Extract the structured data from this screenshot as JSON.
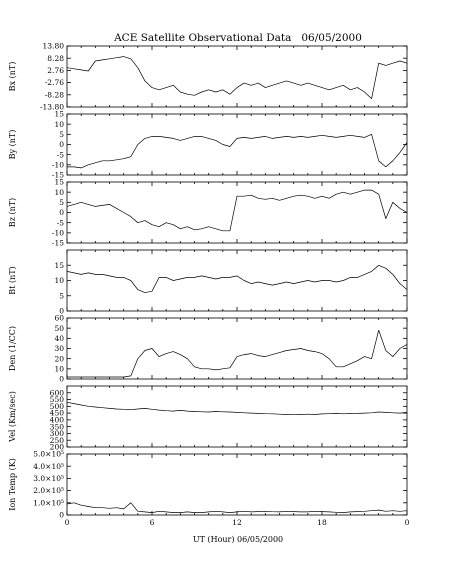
{
  "chart_data": {
    "type": "line",
    "title": "ACE Satellite Observational Data   06/05/2000",
    "xlabel": "UT (Hour)  06/05/2000",
    "x_ticks": [
      "0",
      "6",
      "12",
      "18",
      "0"
    ],
    "x_range_hours": [
      0,
      24
    ],
    "grid": false,
    "line_color": "#000000",
    "panels": [
      {
        "ylabel": "Bx (nT)",
        "ylim": [
          -13.8,
          13.8
        ],
        "yticks": [
          -13.8,
          -8.28,
          -2.76,
          2.76,
          8.28,
          13.8
        ],
        "ytick_labels": [
          "-13.80",
          "-8.28",
          "-2.76",
          "2.76",
          "8.28",
          "13.80"
        ],
        "x": [
          0,
          0.5,
          1,
          1.5,
          2,
          2.5,
          3,
          3.5,
          4,
          4.5,
          5,
          5.5,
          6,
          6.5,
          7,
          7.5,
          8,
          8.5,
          9,
          9.5,
          10,
          10.5,
          11,
          11.5,
          12,
          12.5,
          13,
          13.5,
          14,
          14.5,
          15,
          15.5,
          16,
          16.5,
          17,
          17.5,
          18,
          18.5,
          19,
          19.5,
          20,
          20.5,
          21,
          21.5,
          22,
          22.5,
          23,
          23.5,
          24
        ],
        "y": [
          4,
          3.5,
          3,
          2.5,
          7,
          7.5,
          8,
          8.5,
          9,
          8,
          4,
          -2,
          -5,
          -6,
          -5,
          -4,
          -7,
          -8,
          -8.5,
          -7,
          -6,
          -7,
          -6,
          -8,
          -5,
          -3,
          -4,
          -3,
          -5,
          -4,
          -3,
          -2,
          -3,
          -4,
          -3,
          -4,
          -5,
          -6,
          -5,
          -4,
          -6,
          -5,
          -7,
          -10,
          6,
          5,
          6,
          7,
          6
        ]
      },
      {
        "ylabel": "By (nT)",
        "ylim": [
          -15,
          15
        ],
        "yticks": [
          -15,
          -10,
          -5,
          0,
          5,
          10,
          15
        ],
        "ytick_labels": [
          "-15",
          "-10",
          "-5",
          "0",
          "5",
          "10",
          "15"
        ],
        "x": [
          0,
          0.5,
          1,
          1.5,
          2,
          2.5,
          3,
          3.5,
          4,
          4.5,
          5,
          5.5,
          6,
          6.5,
          7,
          7.5,
          8,
          8.5,
          9,
          9.5,
          10,
          10.5,
          11,
          11.5,
          12,
          12.5,
          13,
          13.5,
          14,
          14.5,
          15,
          15.5,
          16,
          16.5,
          17,
          17.5,
          18,
          18.5,
          19,
          19.5,
          20,
          20.5,
          21,
          21.5,
          22,
          22.5,
          23,
          23.5,
          24
        ],
        "y": [
          -11,
          -11,
          -11.5,
          -10,
          -9,
          -8,
          -8,
          -7.5,
          -7,
          -6,
          0,
          3,
          4,
          4,
          3.5,
          3,
          2,
          3,
          4,
          4,
          3,
          2,
          0,
          -1,
          3,
          3.5,
          3,
          3.5,
          4,
          3,
          3.5,
          4,
          3.5,
          4,
          3.5,
          4,
          4.5,
          4,
          3.5,
          4,
          4.5,
          4,
          3.5,
          5,
          -8,
          -11,
          -8,
          -4,
          1
        ]
      },
      {
        "ylabel": "Bz (nT)",
        "ylim": [
          -15,
          15
        ],
        "yticks": [
          -15,
          -10,
          -5,
          0,
          5,
          10,
          15
        ],
        "ytick_labels": [
          "-15",
          "-10",
          "-5",
          "0",
          "5",
          "10",
          "15"
        ],
        "x": [
          0,
          0.5,
          1,
          1.5,
          2,
          2.5,
          3,
          3.5,
          4,
          4.5,
          5,
          5.5,
          6,
          6.5,
          7,
          7.5,
          8,
          8.5,
          9,
          9.5,
          10,
          10.5,
          11,
          11.5,
          12,
          12.5,
          13,
          13.5,
          14,
          14.5,
          15,
          15.5,
          16,
          16.5,
          17,
          17.5,
          18,
          18.5,
          19,
          19.5,
          20,
          20.5,
          21,
          21.5,
          22,
          22.5,
          23,
          23.5,
          24
        ],
        "y": [
          3,
          4,
          5,
          4,
          3,
          3.5,
          4,
          2,
          0,
          -2,
          -5,
          -4,
          -6,
          -7,
          -5,
          -6,
          -8,
          -7,
          -8.5,
          -8,
          -7,
          -8,
          -9,
          -9,
          8,
          8,
          8.5,
          7,
          6.5,
          7,
          6,
          7,
          8,
          8.5,
          8,
          7,
          8,
          7,
          9,
          10,
          9,
          10,
          11,
          11,
          9,
          -3,
          5,
          2,
          0
        ]
      },
      {
        "ylabel": "Bt (nT)",
        "ylim": [
          0,
          20
        ],
        "yticks": [
          0,
          5,
          10,
          15
        ],
        "ytick_labels": [
          "0",
          "5",
          "10",
          "15"
        ],
        "x": [
          0,
          0.5,
          1,
          1.5,
          2,
          2.5,
          3,
          3.5,
          4,
          4.5,
          5,
          5.5,
          6,
          6.5,
          7,
          7.5,
          8,
          8.5,
          9,
          9.5,
          10,
          10.5,
          11,
          11.5,
          12,
          12.5,
          13,
          13.5,
          14,
          14.5,
          15,
          15.5,
          16,
          16.5,
          17,
          17.5,
          18,
          18.5,
          19,
          19.5,
          20,
          20.5,
          21,
          21.5,
          22,
          22.5,
          23,
          23.5,
          24
        ],
        "y": [
          13,
          12.5,
          12,
          12.5,
          12,
          12,
          11.5,
          11,
          11,
          10,
          7,
          6,
          6.5,
          11,
          11,
          10,
          10.5,
          11,
          11,
          11.5,
          11,
          10.5,
          11,
          11,
          11.5,
          10,
          9,
          9.5,
          9,
          8.5,
          9,
          9.5,
          9,
          9.5,
          10,
          9.5,
          10,
          10,
          9.5,
          10,
          11,
          11,
          12,
          13,
          15,
          14,
          12,
          9,
          7
        ]
      },
      {
        "ylabel": "Den (1/CC)",
        "ylim": [
          0,
          60
        ],
        "yticks": [
          0,
          10,
          20,
          30,
          40,
          50,
          60
        ],
        "ytick_labels": [
          "0",
          "10",
          "20",
          "30",
          "40",
          "50",
          "60"
        ],
        "x": [
          0,
          0.5,
          1,
          1.5,
          2,
          2.5,
          3,
          3.5,
          4,
          4.5,
          5,
          5.5,
          6,
          6.5,
          7,
          7.5,
          8,
          8.5,
          9,
          9.5,
          10,
          10.5,
          11,
          11.5,
          12,
          12.5,
          13,
          13.5,
          14,
          14.5,
          15,
          15.5,
          16,
          16.5,
          17,
          17.5,
          18,
          18.5,
          19,
          19.5,
          20,
          20.5,
          21,
          21.5,
          22,
          22.5,
          23,
          23.5,
          24
        ],
        "y": [
          2,
          2,
          2,
          2,
          2,
          2,
          2,
          2,
          2,
          3,
          20,
          28,
          30,
          22,
          25,
          27,
          24,
          20,
          12,
          10,
          10,
          9,
          10,
          11,
          22,
          24,
          25,
          23,
          22,
          24,
          26,
          28,
          29,
          30,
          28,
          27,
          25,
          20,
          12,
          12,
          15,
          18,
          22,
          20,
          48,
          28,
          22,
          30,
          34
        ]
      },
      {
        "ylabel": "Vel (Km/sec)",
        "ylim": [
          200,
          650
        ],
        "yticks": [
          200,
          250,
          300,
          350,
          400,
          450,
          500,
          550,
          600
        ],
        "ytick_labels": [
          "200",
          "250",
          "300",
          "350",
          "400",
          "450",
          "500",
          "550",
          "600"
        ],
        "x": [
          0,
          0.5,
          1,
          1.5,
          2,
          2.5,
          3,
          3.5,
          4,
          4.5,
          5,
          5.5,
          6,
          6.5,
          7,
          7.5,
          8,
          8.5,
          9,
          9.5,
          10,
          10.5,
          11,
          11.5,
          12,
          12.5,
          13,
          13.5,
          14,
          14.5,
          15,
          15.5,
          16,
          16.5,
          17,
          17.5,
          18,
          18.5,
          19,
          19.5,
          20,
          20.5,
          21,
          21.5,
          22,
          22.5,
          23,
          23.5,
          24
        ],
        "y": [
          530,
          520,
          510,
          500,
          495,
          490,
          485,
          480,
          478,
          475,
          480,
          485,
          478,
          472,
          468,
          465,
          470,
          465,
          462,
          460,
          458,
          462,
          460,
          458,
          455,
          452,
          450,
          448,
          446,
          445,
          442,
          440,
          438,
          440,
          442,
          440,
          444,
          446,
          448,
          445,
          447,
          448,
          450,
          452,
          458,
          455,
          452,
          450,
          455
        ]
      },
      {
        "ylabel": "Ion Temp (K)",
        "ylim": [
          0,
          500000
        ],
        "yticks": [
          0,
          100000,
          200000,
          300000,
          400000,
          500000
        ],
        "ytick_labels": [
          "0",
          "1.0×10⁵",
          "2.0×10⁵",
          "3.0×10⁵",
          "4.0×10⁵",
          "5.0×10⁵"
        ],
        "x": [
          0,
          0.5,
          1,
          1.5,
          2,
          2.5,
          3,
          3.5,
          4,
          4.5,
          5,
          5.5,
          6,
          6.5,
          7,
          7.5,
          8,
          8.5,
          9,
          9.5,
          10,
          10.5,
          11,
          11.5,
          12,
          12.5,
          13,
          13.5,
          14,
          14.5,
          15,
          15.5,
          16,
          16.5,
          17,
          17.5,
          18,
          18.5,
          19,
          19.5,
          20,
          20.5,
          21,
          21.5,
          22,
          22.5,
          23,
          23.5,
          24
        ],
        "y": [
          90000,
          100000,
          80000,
          70000,
          60000,
          60000,
          55000,
          60000,
          50000,
          100000,
          30000,
          25000,
          20000,
          30000,
          25000,
          20000,
          20000,
          25000,
          20000,
          20000,
          25000,
          30000,
          25000,
          20000,
          25000,
          30000,
          25000,
          28000,
          30000,
          27000,
          25000,
          30000,
          28000,
          25000,
          25000,
          30000,
          28000,
          25000,
          22000,
          20000,
          25000,
          28000,
          30000,
          35000,
          40000,
          30000,
          35000,
          30000,
          35000
        ]
      }
    ]
  }
}
